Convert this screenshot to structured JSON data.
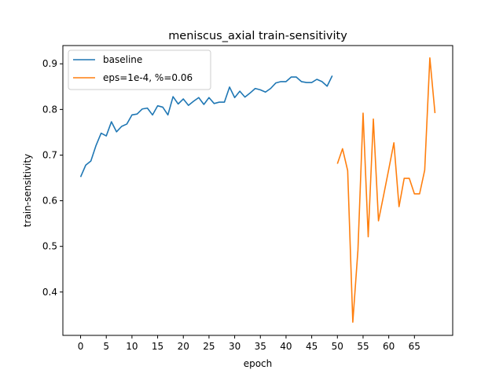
{
  "chart_data": {
    "type": "line",
    "title": "meniscus_axial train-sensitivity",
    "xlabel": "epoch",
    "ylabel": "train-sensitivity",
    "xlim": [
      -3.45,
      72.45
    ],
    "ylim": [
      0.305,
      0.94
    ],
    "xticks": [
      0,
      5,
      10,
      15,
      20,
      25,
      30,
      35,
      40,
      45,
      50,
      55,
      60,
      65
    ],
    "yticks": [
      0.4,
      0.5,
      0.6,
      0.7,
      0.8,
      0.9
    ],
    "grid": false,
    "legend_position": "upper-left",
    "series": [
      {
        "name": "baseline",
        "color": "#1f77b4",
        "x": [
          0,
          1,
          2,
          3,
          4,
          5,
          6,
          7,
          8,
          9,
          10,
          11,
          12,
          13,
          14,
          15,
          16,
          17,
          18,
          19,
          20,
          21,
          22,
          23,
          24,
          25,
          26,
          27,
          28,
          29,
          30,
          31,
          32,
          33,
          34,
          35,
          36,
          37,
          38,
          39,
          40,
          41,
          42,
          43,
          44,
          45,
          46,
          47,
          48,
          49
        ],
        "y": [
          0.652,
          0.678,
          0.687,
          0.721,
          0.748,
          0.742,
          0.773,
          0.751,
          0.763,
          0.768,
          0.788,
          0.79,
          0.801,
          0.803,
          0.788,
          0.808,
          0.805,
          0.788,
          0.828,
          0.812,
          0.823,
          0.809,
          0.818,
          0.826,
          0.811,
          0.826,
          0.813,
          0.816,
          0.816,
          0.849,
          0.826,
          0.84,
          0.827,
          0.836,
          0.846,
          0.843,
          0.838,
          0.846,
          0.858,
          0.861,
          0.861,
          0.871,
          0.871,
          0.861,
          0.859,
          0.859,
          0.866,
          0.861,
          0.851,
          0.874
        ]
      },
      {
        "name": "eps=1e-4, %=0.06",
        "color": "#ff7f0e",
        "x": [
          50,
          51,
          52,
          53,
          54,
          55,
          56,
          57,
          58,
          59,
          60,
          61,
          62,
          63,
          64,
          65,
          66,
          67,
          68,
          69
        ],
        "y": [
          0.681,
          0.714,
          0.666,
          0.334,
          0.492,
          0.792,
          0.521,
          0.779,
          0.556,
          0.612,
          0.669,
          0.727,
          0.587,
          0.649,
          0.649,
          0.615,
          0.615,
          0.667,
          0.913,
          0.792
        ]
      }
    ]
  }
}
